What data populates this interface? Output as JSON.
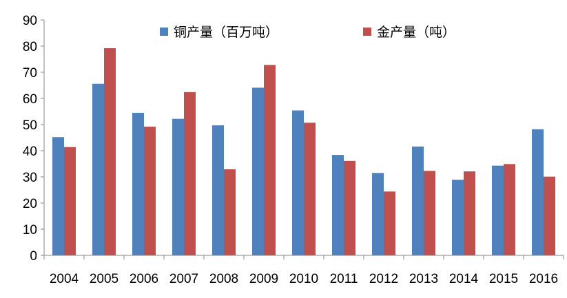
{
  "chart_data": {
    "type": "bar",
    "categories": [
      "2004",
      "2005",
      "2006",
      "2007",
      "2008",
      "2009",
      "2010",
      "2011",
      "2012",
      "2013",
      "2014",
      "2015",
      "2016"
    ],
    "series": [
      {
        "name": "铜产量（百万吨）",
        "color": "#4F81BD",
        "values": [
          45.2,
          65.6,
          54.5,
          52.2,
          49.7,
          64.1,
          55.4,
          38.4,
          31.5,
          41.6,
          28.9,
          34.3,
          48.2
        ]
      },
      {
        "name": "金产量（吨）",
        "color": "#C0504D",
        "values": [
          41.4,
          79.2,
          49.2,
          62.4,
          32.9,
          72.8,
          50.7,
          36.1,
          24.4,
          32.3,
          32.1,
          34.9,
          30.1
        ]
      }
    ],
    "yticks": [
      0,
      10,
      20,
      30,
      40,
      50,
      60,
      70,
      80,
      90
    ],
    "ylim": [
      0,
      90
    ],
    "legend_position": "top",
    "grid": false
  }
}
